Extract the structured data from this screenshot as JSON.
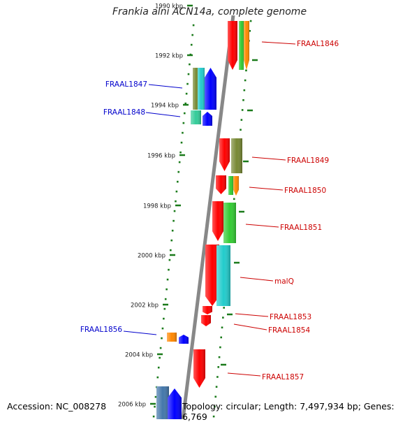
{
  "title": "Frankia alni ACN14a, complete genome",
  "accession": "Accession: NC_008278",
  "topology": "Topology: circular; Length: 7,497,934 bp; Genes: 6,769",
  "colors": {
    "label_forward": "#cc0000",
    "label_reverse": "#0000cc",
    "tick": "#1a7a1a",
    "backbone": "#888888",
    "red": "#ff0000",
    "green": "#33cc33",
    "orange": "#ff8800",
    "olive": "#778833",
    "blue": "#0000ff",
    "cyan": "#22cccc",
    "teal": "#33cc99",
    "steel": "#4477aa"
  },
  "scale_labels": [
    "1990 kbp",
    "1992 kbp",
    "1994 kbp",
    "1996 kbp",
    "1998 kbp",
    "2000 kbp",
    "2002 kbp",
    "2004 kbp",
    "2006 kbp"
  ],
  "gene_labels": [
    {
      "text": "FRAAL1846",
      "strand": "forward"
    },
    {
      "text": "FRAAL1847",
      "strand": "reverse"
    },
    {
      "text": "FRAAL1848",
      "strand": "reverse"
    },
    {
      "text": "FRAAL1849",
      "strand": "forward"
    },
    {
      "text": "FRAAL1850",
      "strand": "forward"
    },
    {
      "text": "FRAAL1851",
      "strand": "forward"
    },
    {
      "text": "malQ",
      "strand": "forward"
    },
    {
      "text": "FRAAL1853",
      "strand": "forward"
    },
    {
      "text": "FRAAL1854",
      "strand": "forward"
    },
    {
      "text": "FRAAL1856",
      "strand": "reverse"
    },
    {
      "text": "FRAAL1857",
      "strand": "forward"
    }
  ]
}
